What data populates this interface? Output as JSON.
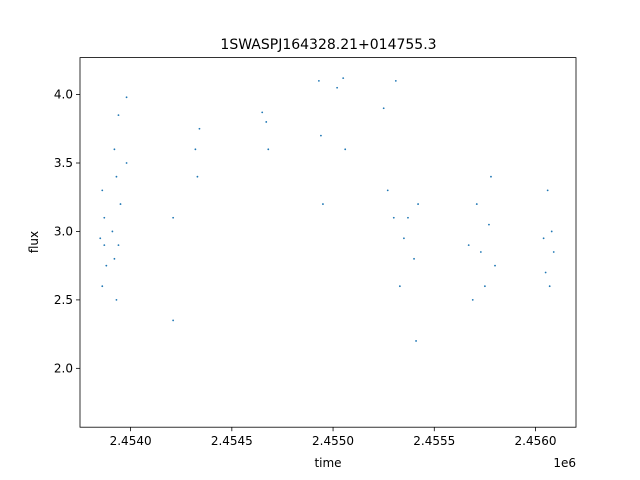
{
  "chart_data": {
    "type": "scatter",
    "title": "1SWASPJ164328.21+014755.3",
    "xlabel": "time",
    "ylabel": "flux",
    "x_offset_label": "1e6",
    "xlim": [
      2.45375,
      2.4562
    ],
    "ylim": [
      1.57,
      4.27
    ],
    "xticks": [
      2.454,
      2.4545,
      2.455,
      2.4555,
      2.456
    ],
    "xtick_labels": [
      "2.4540",
      "2.4545",
      "2.4550",
      "2.4555",
      "2.4560"
    ],
    "yticks": [
      2.0,
      2.5,
      3.0,
      3.5,
      4.0
    ],
    "ytick_labels": [
      "2.0",
      "2.5",
      "3.0",
      "3.5",
      "4.0"
    ],
    "grid": false,
    "point_color": "#1f77b4",
    "series": [
      {
        "x": [
          2.45385,
          2.45386,
          2.45386,
          2.45387,
          2.45387,
          2.45388,
          2.45391,
          2.45392,
          2.45392,
          2.45393,
          2.45393,
          2.45394,
          2.45394,
          2.45395,
          2.45398,
          2.45398,
          2.45421,
          2.45421,
          2.45432,
          2.45433,
          2.45434,
          2.45465,
          2.45467,
          2.45468,
          2.45493,
          2.45494,
          2.45495,
          2.45502,
          2.45505,
          2.45506,
          2.45525,
          2.45527,
          2.4553,
          2.45531,
          2.45533,
          2.45535,
          2.45537,
          2.4554,
          2.45541,
          2.45542,
          2.45567,
          2.45569,
          2.45571,
          2.45573,
          2.45575,
          2.45577,
          2.45578,
          2.4558,
          2.45604,
          2.45605,
          2.45606,
          2.45607,
          2.45608,
          2.45609
        ],
        "y": [
          2.95,
          3.3,
          2.6,
          2.9,
          3.1,
          2.75,
          3.0,
          3.6,
          2.8,
          3.4,
          2.5,
          3.85,
          2.9,
          3.2,
          3.98,
          3.5,
          3.1,
          2.35,
          3.6,
          3.4,
          3.75,
          3.87,
          3.8,
          3.6,
          4.1,
          3.7,
          3.2,
          4.05,
          4.12,
          3.6,
          3.9,
          3.3,
          3.1,
          4.1,
          2.6,
          2.95,
          3.1,
          2.8,
          2.2,
          3.2,
          2.9,
          2.5,
          3.2,
          2.85,
          2.6,
          3.05,
          3.4,
          2.75,
          2.95,
          2.7,
          3.3,
          2.6,
          3.0,
          2.85
        ]
      }
    ]
  }
}
